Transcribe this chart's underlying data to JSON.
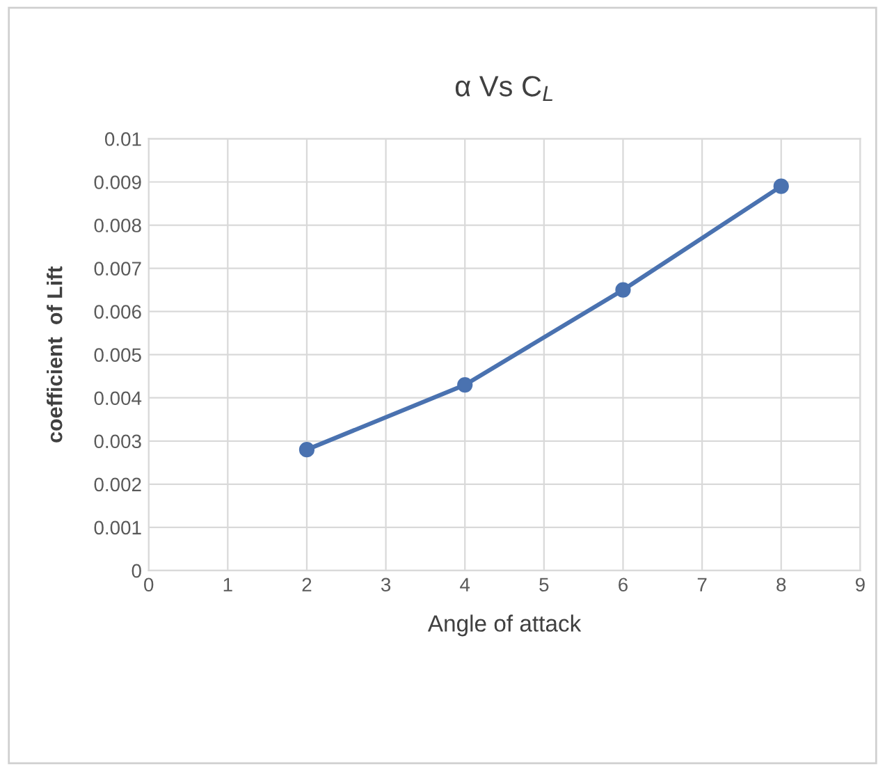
{
  "chart_data": {
    "type": "line",
    "title": "α Vs C$_{L}$",
    "xlabel": "Angle of attack",
    "ylabel": "coefficient  of Lift",
    "x": [
      2,
      4,
      6,
      8
    ],
    "series": [
      {
        "color": "#4a72b0",
        "values": [
          0.0028,
          0.0043,
          0.0065,
          0.0089
        ]
      }
    ],
    "xlim": [
      0,
      9
    ],
    "xticks": [
      0,
      1,
      2,
      3,
      4,
      5,
      6,
      7,
      8,
      9
    ],
    "ylim": [
      0,
      0.01
    ],
    "yticks": [
      0,
      0.001,
      0.002,
      0.003,
      0.004,
      0.005,
      0.006,
      0.007,
      0.008,
      0.009,
      0.01
    ],
    "grid": true,
    "marker": "circle",
    "line_style": "solid"
  }
}
